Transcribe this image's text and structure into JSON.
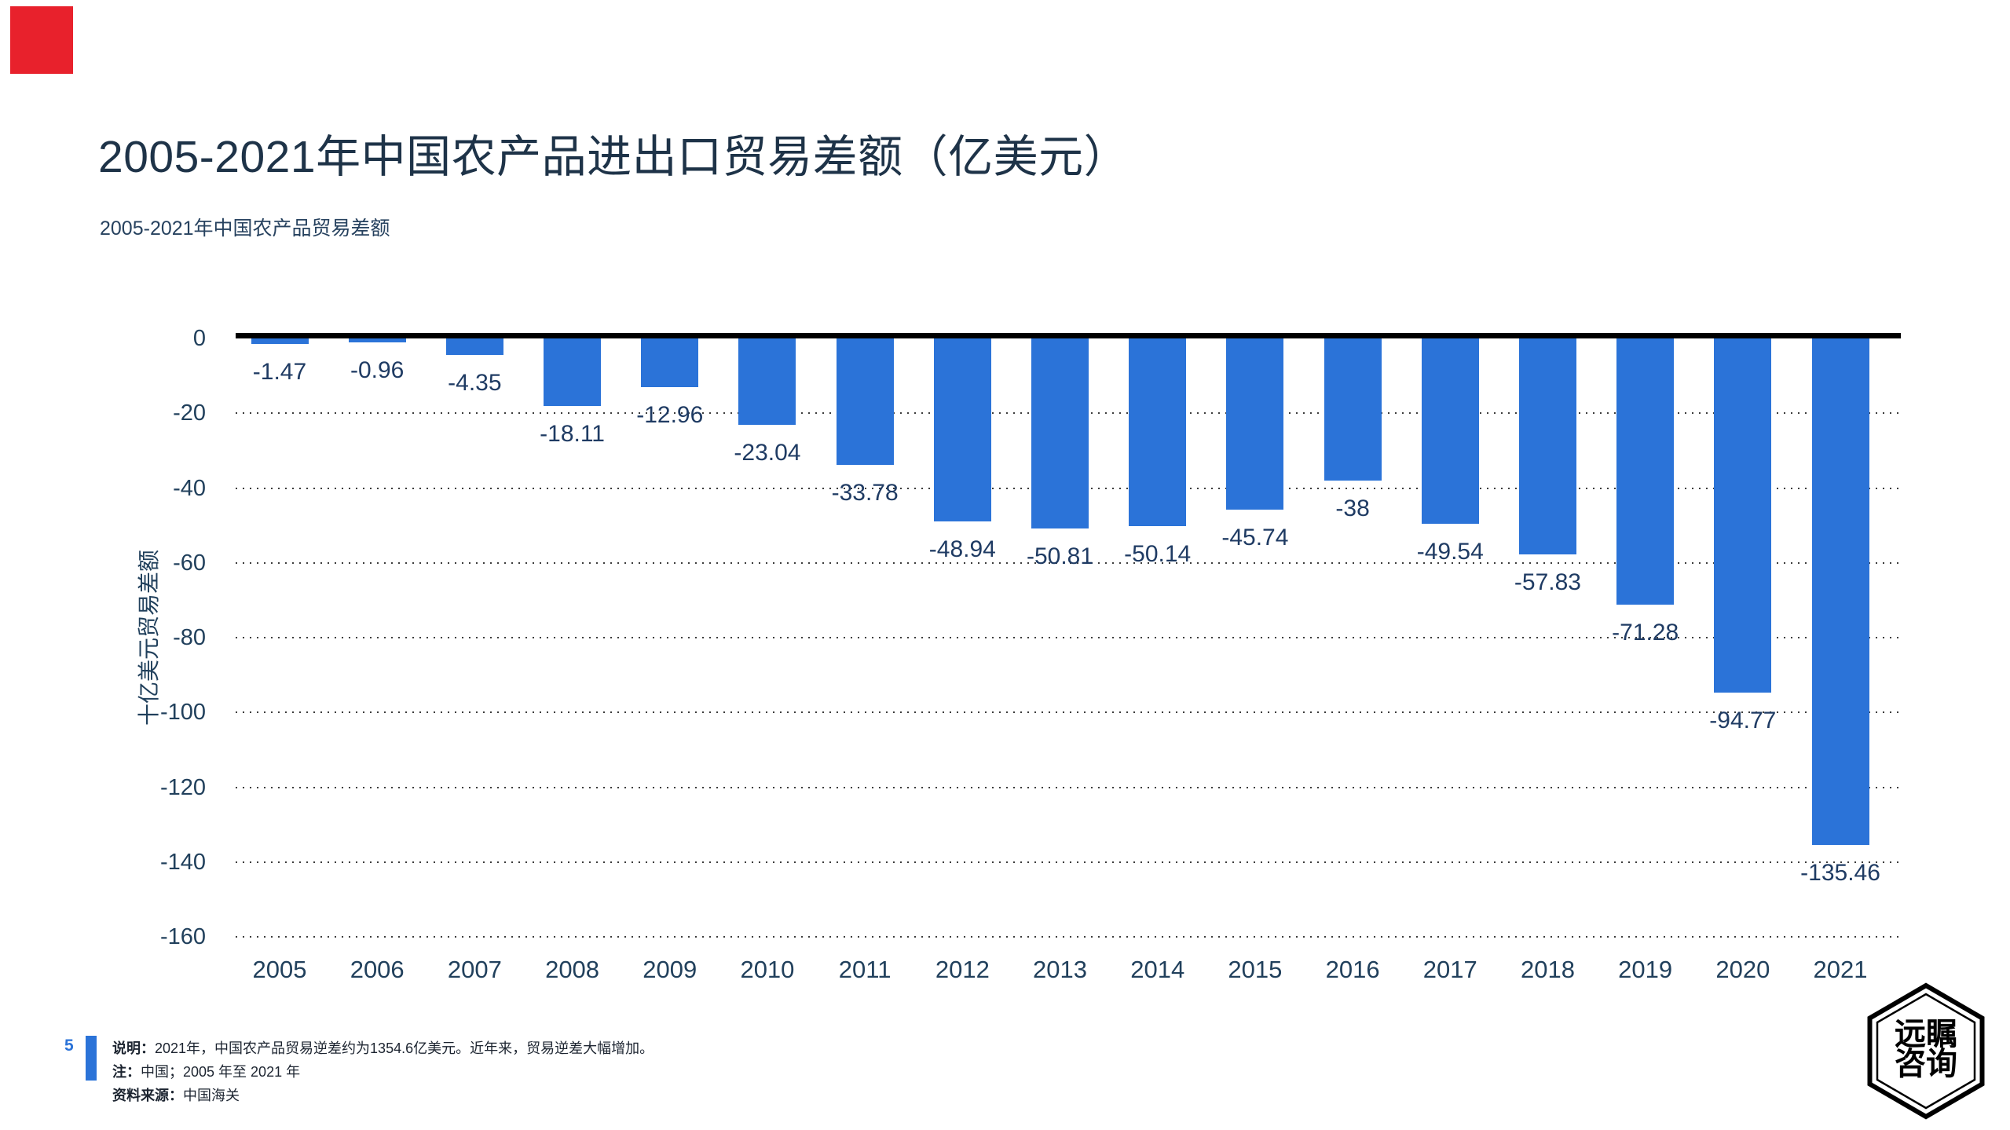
{
  "marker": {
    "color": "#e8212c"
  },
  "header": {
    "title": "2005-2021年中国农产品进出口贸易差额（亿美元）",
    "subtitle": "2005-2021年中国农产品贸易差额"
  },
  "chart_data": {
    "type": "bar",
    "title": "2005-2021年中国农产品贸易差额",
    "categories": [
      "2005",
      "2006",
      "2007",
      "2008",
      "2009",
      "2010",
      "2011",
      "2012",
      "2013",
      "2014",
      "2015",
      "2016",
      "2017",
      "2018",
      "2019",
      "2020",
      "2021"
    ],
    "values": [
      -1.47,
      -0.96,
      -4.35,
      -18.11,
      -12.96,
      -23.04,
      -33.78,
      -48.94,
      -50.81,
      -50.14,
      -45.74,
      -38,
      -49.54,
      -57.83,
      -71.28,
      -94.77,
      -135.46
    ],
    "labels": [
      "-1.47",
      "-0.96",
      "-4.35",
      "-18.11",
      "-12.96",
      "-23.04",
      "-33.78",
      "-48.94",
      "-50.81",
      "-50.14",
      "-45.74",
      "-38",
      "-49.54",
      "-57.83",
      "-71.28",
      "-94.77",
      "-135.46"
    ],
    "xlabel": "",
    "ylabel": "十亿美元贸易差额",
    "yticks": [
      0,
      -20,
      -40,
      -60,
      -80,
      -100,
      -120,
      -140,
      -160
    ],
    "ytick_labels": [
      "0",
      "-20",
      "-40",
      "-60",
      "-80",
      "-100",
      "-120",
      "-140",
      "-160"
    ],
    "ylim": [
      -160,
      0
    ],
    "grid": "horizontal-dotted",
    "legend": "none",
    "bar_color": "#2b73d8",
    "zero_line_color": "#000000"
  },
  "footer": {
    "page_number": "5",
    "notes": [
      {
        "prefix": "说明：",
        "text": "2021年，中国农产品贸易逆差约为1354.6亿美元。近年来，贸易逆差大幅增加。"
      },
      {
        "prefix": "注：",
        "text": "中国；2005 年至 2021 年"
      },
      {
        "prefix": "资料来源：",
        "text": "中国海关"
      }
    ]
  },
  "logo": {
    "line1": "远瞩",
    "line2": "咨询"
  }
}
